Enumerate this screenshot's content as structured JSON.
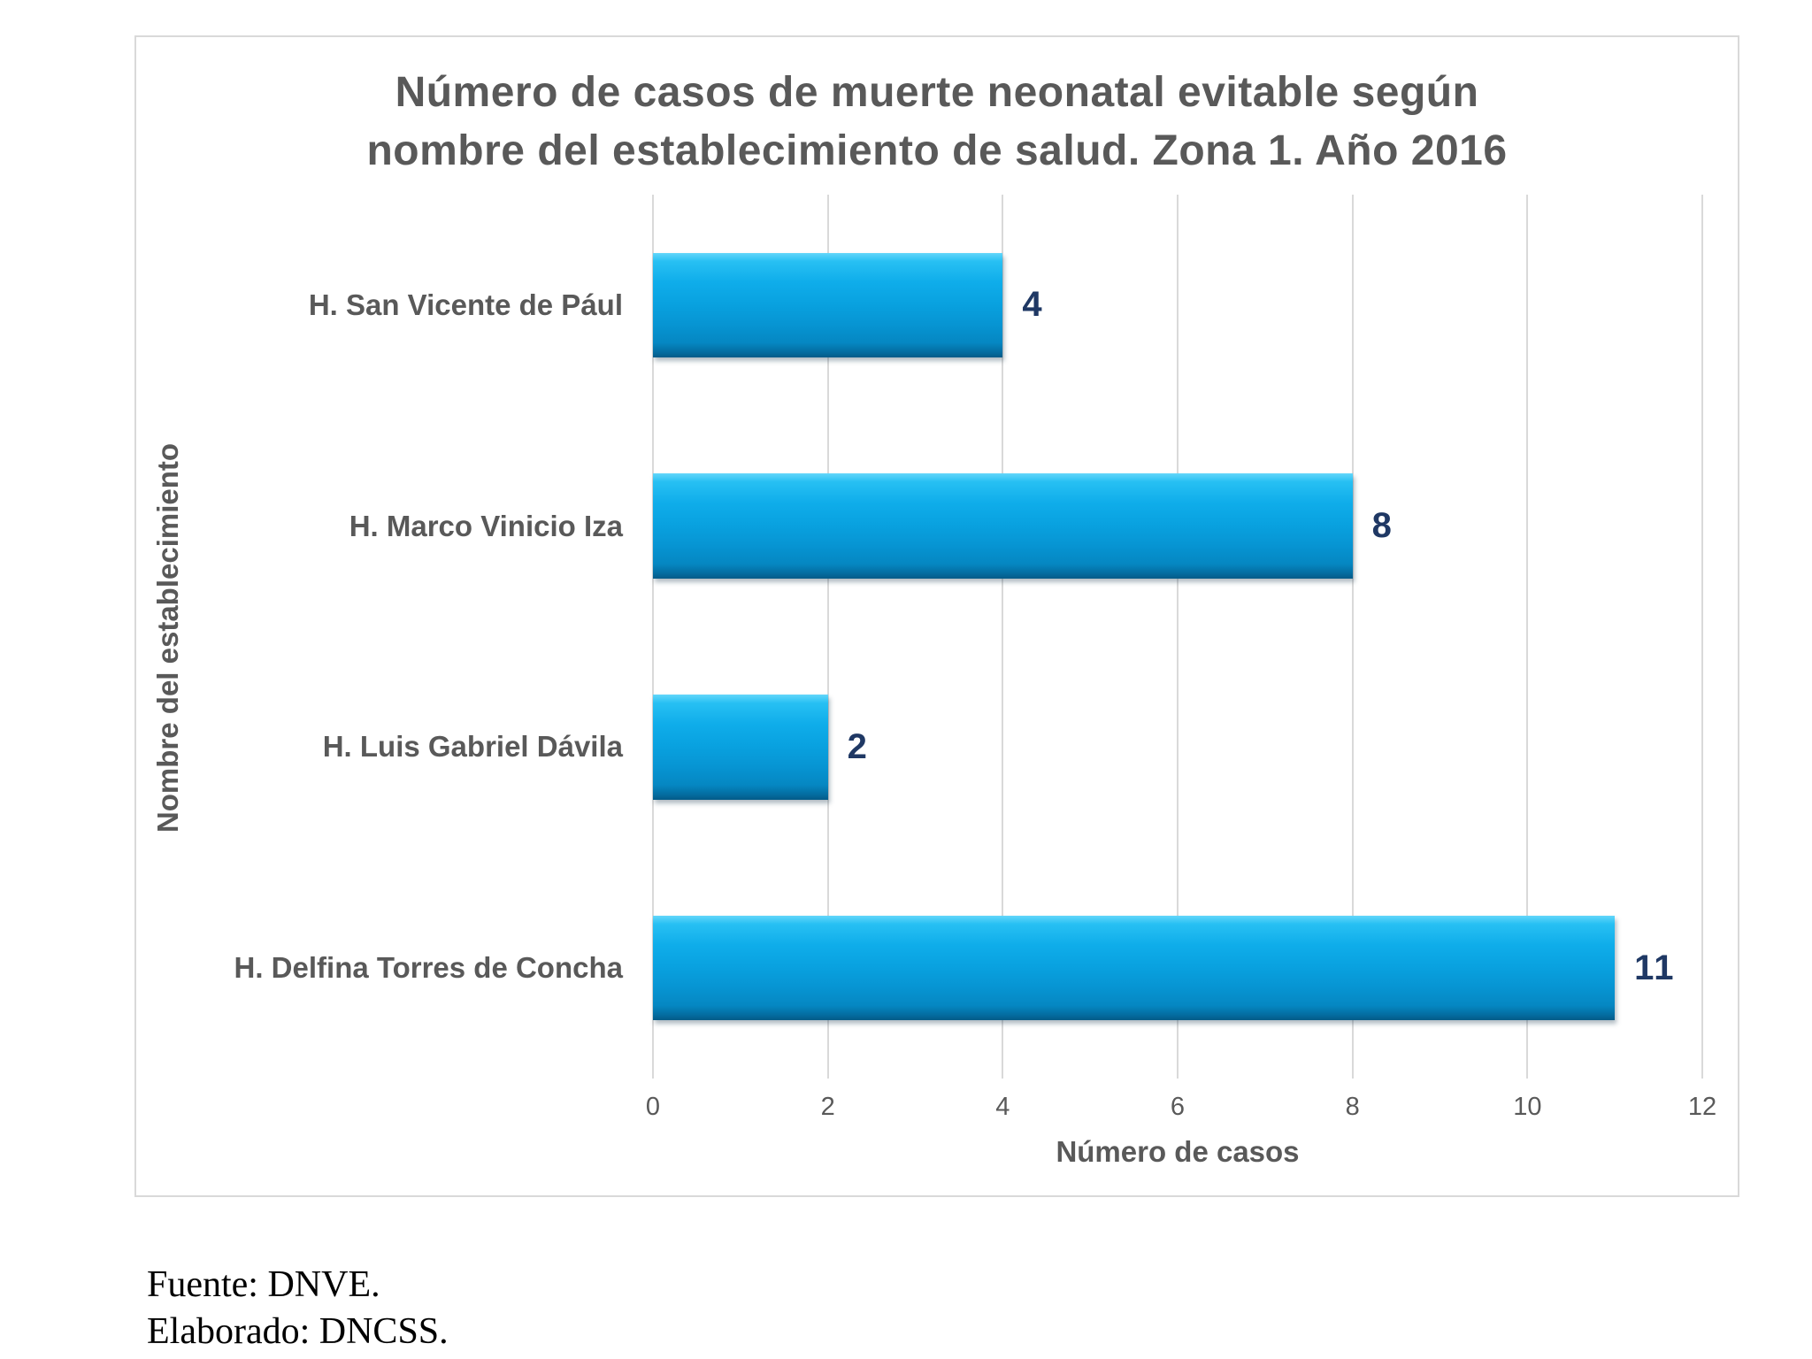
{
  "chart_data": {
    "type": "bar",
    "orientation": "horizontal",
    "title": "Número de casos de muerte neonatal evitable según nombre del establecimiento de salud. Zona 1. Año 2016",
    "title_lines": [
      "Número de casos de muerte neonatal evitable según",
      "nombre del establecimiento de salud. Zona 1. Año 2016"
    ],
    "categories": [
      "H. San Vicente de Pául",
      "H. Marco Vinicio Iza",
      "H. Luis Gabriel Dávila",
      "H. Delfina Torres de Concha"
    ],
    "values": [
      4,
      8,
      2,
      11
    ],
    "xlabel": "Número de casos",
    "ylabel": "Nombre del establecimiento",
    "xlim": [
      0,
      12
    ],
    "xticks": [
      0,
      2,
      4,
      6,
      8,
      10,
      12
    ],
    "legend": "none",
    "grid": "vertical",
    "colors": {
      "bar": "#0AA2E0",
      "bar_highlight": "#63D6FA",
      "bar_shadow": "#035A87",
      "value_label": "#1F3864",
      "axis_text": "#595959",
      "gridline": "#D9D9D9",
      "frame_border": "#D9D9D9",
      "background": "#FFFFFF"
    }
  },
  "footer": {
    "line1": "Fuente: DNVE.",
    "line2": "Elaborado: DNCSS."
  }
}
